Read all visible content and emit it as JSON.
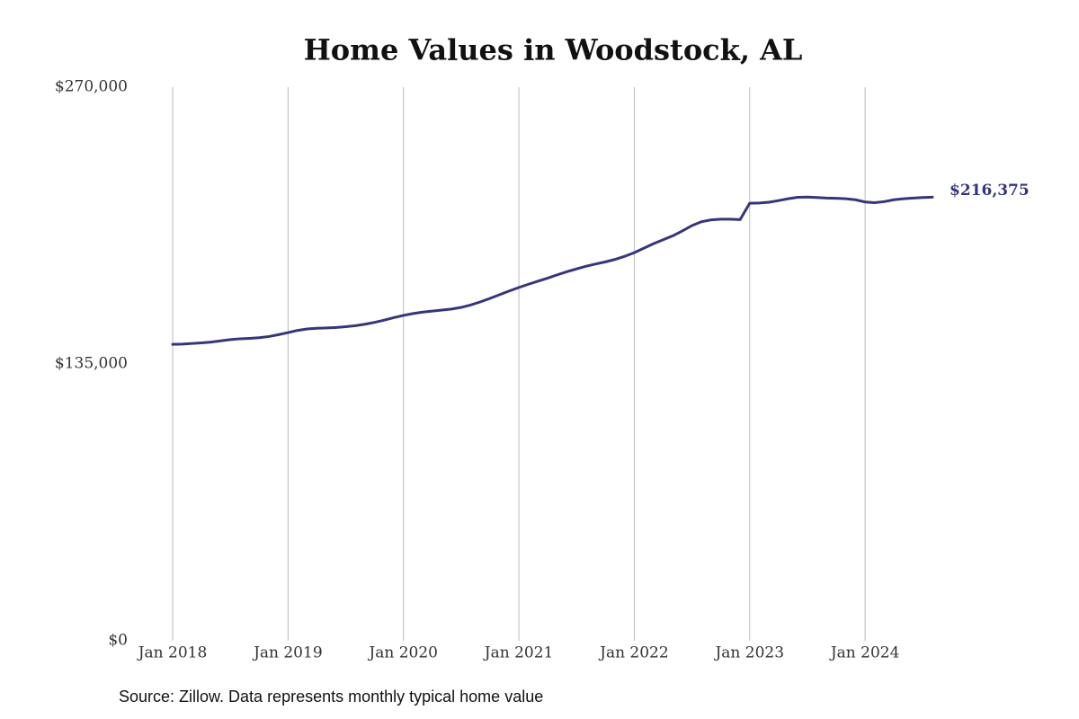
{
  "chart_data": {
    "type": "line",
    "title": "Home Values in Woodstock, AL",
    "source": "Source: Zillow. Data represents monthly typical home value",
    "x": [
      "2018-01",
      "2018-02",
      "2018-03",
      "2018-04",
      "2018-05",
      "2018-06",
      "2018-07",
      "2018-08",
      "2018-09",
      "2018-10",
      "2018-11",
      "2018-12",
      "2019-01",
      "2019-02",
      "2019-03",
      "2019-04",
      "2019-05",
      "2019-06",
      "2019-07",
      "2019-08",
      "2019-09",
      "2019-10",
      "2019-11",
      "2019-12",
      "2020-01",
      "2020-02",
      "2020-03",
      "2020-04",
      "2020-05",
      "2020-06",
      "2020-07",
      "2020-08",
      "2020-09",
      "2020-10",
      "2020-11",
      "2020-12",
      "2021-01",
      "2021-02",
      "2021-03",
      "2021-04",
      "2021-05",
      "2021-06",
      "2021-07",
      "2021-08",
      "2021-09",
      "2021-10",
      "2021-11",
      "2021-12",
      "2022-01",
      "2022-02",
      "2022-03",
      "2022-04",
      "2022-05",
      "2022-06",
      "2022-07",
      "2022-08",
      "2022-09",
      "2022-10",
      "2022-11",
      "2022-12",
      "2023-01",
      "2023-02",
      "2023-03",
      "2023-04",
      "2023-05",
      "2023-06",
      "2023-07",
      "2023-08",
      "2023-09",
      "2023-10",
      "2023-11",
      "2023-12",
      "2024-01",
      "2024-02",
      "2024-03",
      "2024-04",
      "2024-05",
      "2024-06",
      "2024-07",
      "2024-08"
    ],
    "series": [
      {
        "name": "Typical home value",
        "color": "#37347f",
        "values": [
          144600,
          144700,
          145000,
          145300,
          145700,
          146300,
          146900,
          147300,
          147500,
          147800,
          148400,
          149300,
          150300,
          151400,
          152100,
          152400,
          152600,
          152800,
          153200,
          153700,
          154400,
          155300,
          156400,
          157600,
          158700,
          159600,
          160300,
          160800,
          161300,
          161800,
          162600,
          163800,
          165300,
          167000,
          168800,
          170600,
          172300,
          173900,
          175400,
          176900,
          178500,
          180000,
          181400,
          182700,
          183800,
          184800,
          186000,
          187500,
          189300,
          191500,
          193700,
          195600,
          197500,
          199900,
          202500,
          204400,
          205300,
          205600,
          205600,
          205400,
          213400,
          213500,
          213900,
          214700,
          215600,
          216300,
          216400,
          216200,
          215900,
          215800,
          215600,
          215100,
          214000,
          213700,
          214200,
          215100,
          215600,
          215900,
          216200,
          216375
        ],
        "value_labels": [
          null,
          null,
          null,
          null,
          null,
          null,
          null,
          null,
          null,
          null,
          null,
          null,
          null,
          null,
          null,
          null,
          null,
          null,
          null,
          null,
          null,
          null,
          null,
          null,
          null,
          null,
          null,
          null,
          null,
          null,
          null,
          null,
          null,
          null,
          null,
          null,
          null,
          null,
          null,
          null,
          null,
          null,
          null,
          null,
          null,
          null,
          null,
          null,
          null,
          null,
          null,
          null,
          null,
          null,
          null,
          null,
          null,
          null,
          null,
          null,
          null,
          null,
          null,
          null,
          null,
          null,
          null,
          null,
          null,
          null,
          null,
          null,
          null,
          null,
          null,
          null,
          null,
          null,
          null,
          "$216,375"
        ]
      }
    ],
    "xlim": [
      "2018-01",
      "2024-08"
    ],
    "xticks": [
      {
        "value": "2018-01",
        "label": "Jan 2018"
      },
      {
        "value": "2019-01",
        "label": "Jan 2019"
      },
      {
        "value": "2020-01",
        "label": "Jan 2020"
      },
      {
        "value": "2021-01",
        "label": "Jan 2021"
      },
      {
        "value": "2022-01",
        "label": "Jan 2022"
      },
      {
        "value": "2023-01",
        "label": "Jan 2023"
      },
      {
        "value": "2024-01",
        "label": "Jan 2024"
      }
    ],
    "ylim": [
      0,
      270000
    ],
    "yticks": [
      {
        "value": 0,
        "label": "$0"
      },
      {
        "value": 135000,
        "label": "$135,000"
      },
      {
        "value": 270000,
        "label": "$270,000"
      }
    ],
    "grid": "x"
  }
}
